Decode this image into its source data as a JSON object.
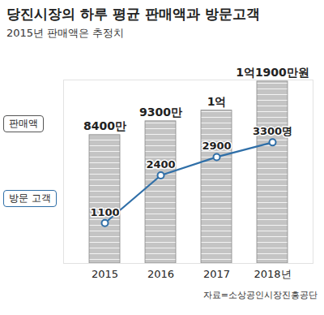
{
  "chart_data": {
    "type": "bar",
    "title": "당진시장의 하루 평균 판매액과 방문고객",
    "subtitle": "2015년 판매액은 추정치",
    "source": "자료=소상공인시장진흥공단",
    "categories": [
      "2015",
      "2016",
      "2017",
      "2018년"
    ],
    "series": [
      {
        "name": "판매액",
        "type": "bar",
        "color": "#c4c4c4",
        "values": [
          8400,
          9300,
          10000,
          11900
        ],
        "value_labels": [
          "8400만",
          "9300만",
          "1억",
          "1억1900만원"
        ]
      },
      {
        "name": "방문 고객",
        "type": "line",
        "axis": "y2",
        "color": "#2f6fa8",
        "marker": "circle",
        "values": [
          1100,
          2400,
          2900,
          3300
        ],
        "value_labels": [
          "1100",
          "2400",
          "2900",
          "3300명"
        ]
      }
    ],
    "ylim": [
      0,
      12000
    ],
    "y2lim": [
      0,
      5000
    ],
    "data_labels": true,
    "tick_labels": "x"
  }
}
